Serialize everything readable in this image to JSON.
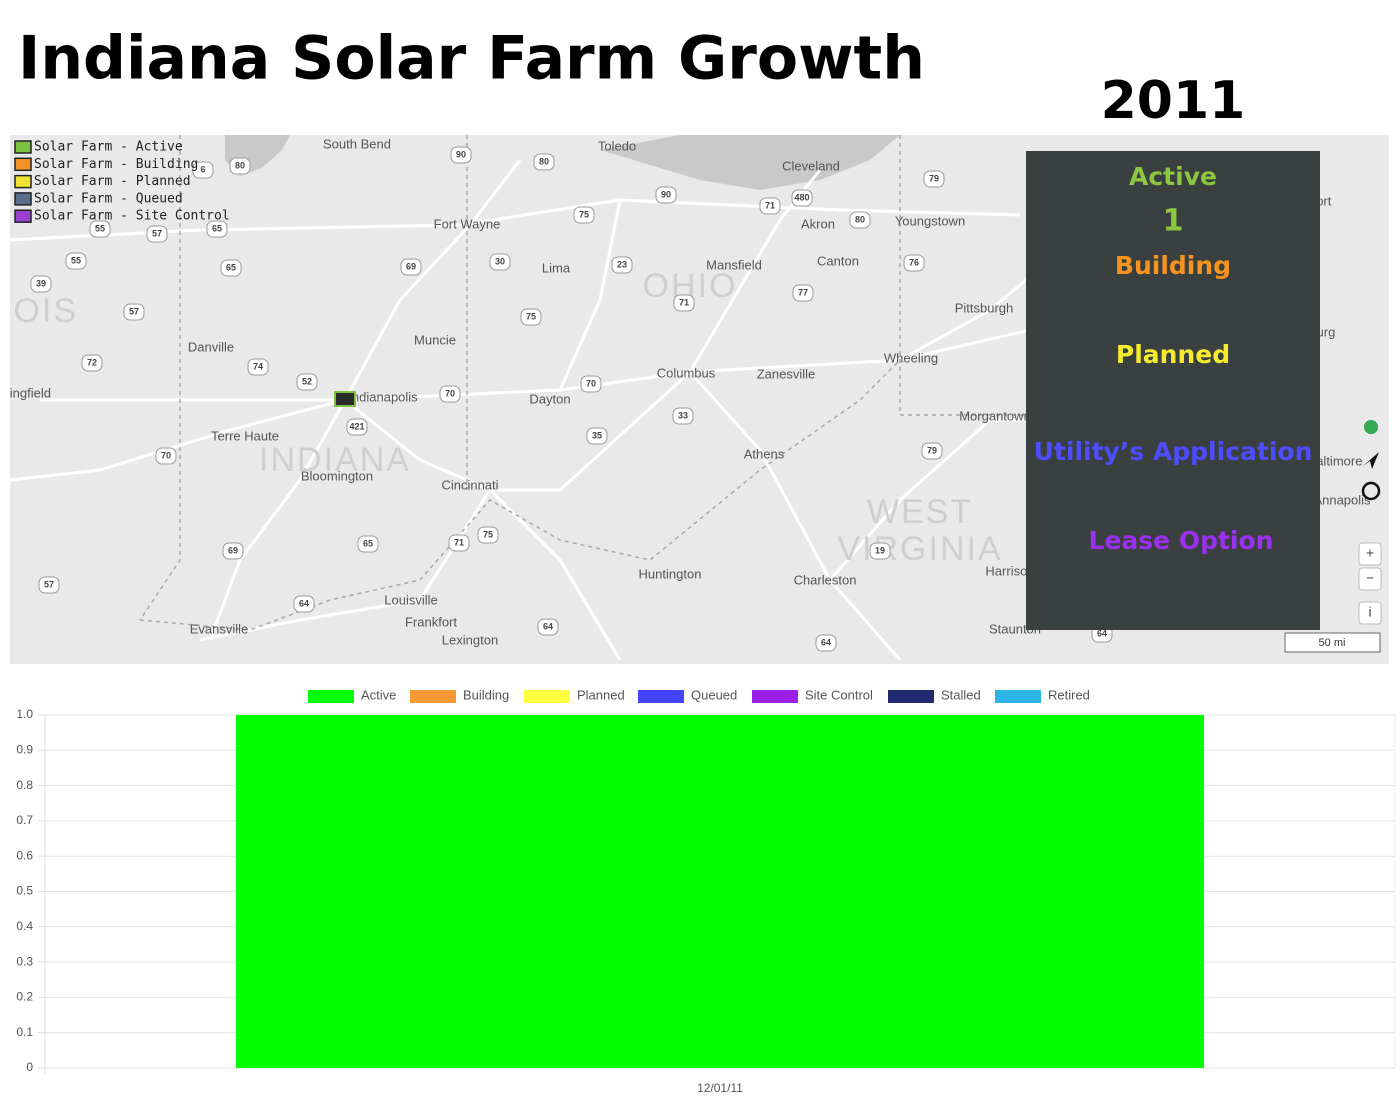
{
  "header": {
    "title": "Indiana Solar Farm Growth",
    "year": "2011"
  },
  "map": {
    "legend": [
      {
        "label": "Solar Farm - Active",
        "color": "#7cc241"
      },
      {
        "label": "Solar Farm - Building",
        "color": "#f39325"
      },
      {
        "label": "Solar Farm - Planned",
        "color": "#f2e233"
      },
      {
        "label": "Solar Farm - Queued",
        "color": "#5a6e8c"
      },
      {
        "label": "Solar Farm - Site Control",
        "color": "#9b3fd1"
      }
    ],
    "cities": [
      "South Bend",
      "Toledo",
      "Cleveland",
      "Fort Wayne",
      "Akron",
      "Youngstown",
      "Williamsport",
      "Lima",
      "Mansfield",
      "Canton",
      "Pittsburgh",
      "Harrisburg",
      "Muncie",
      "Danville",
      "Columbus",
      "Zanesville",
      "Wheeling",
      "Dayton",
      "Indianapolis",
      "Morgantown",
      "Terre Haute",
      "Athens",
      "Baltimore",
      "Bloomington",
      "Cincinnati",
      "Annapolis",
      "Huntington",
      "Charleston",
      "Harrisonburg",
      "Louisville",
      "Frankfort",
      "Evansville",
      "Lexington",
      "Staunton",
      "Springfield"
    ],
    "states": [
      "OHIO",
      "INDIANA",
      "WEST",
      "VIRGINIA",
      "ILLINOIS"
    ],
    "highways": [
      "90",
      "80",
      "80",
      "6",
      "90",
      "75",
      "71",
      "480",
      "80",
      "79",
      "65",
      "55",
      "57",
      "55",
      "65",
      "69",
      "30",
      "23",
      "71",
      "77",
      "76",
      "39",
      "57",
      "75",
      "72",
      "74",
      "52",
      "70",
      "70",
      "421",
      "33",
      "35",
      "70",
      "79",
      "69",
      "65",
      "71",
      "75",
      "19",
      "57",
      "64",
      "64",
      "64",
      "64"
    ],
    "controls": [
      "+",
      "−",
      "i"
    ],
    "scale": "50 mi"
  },
  "panel": {
    "items": [
      {
        "label": "Active",
        "count": 1,
        "color": "#8dc63f"
      },
      {
        "label": "Building",
        "color": "#f7941d"
      },
      {
        "label": "Planned",
        "color": "#f5ec2f"
      },
      {
        "label": "Utility’s Application",
        "color": "#4d4dff"
      },
      {
        "label": "Lease Option",
        "color": "#9b30f0"
      }
    ]
  },
  "chart_data": {
    "type": "bar",
    "stacked": true,
    "categories": [
      "12/01/11"
    ],
    "series": [
      {
        "name": "Active",
        "color": "#00ff00",
        "values": [
          1
        ]
      },
      {
        "name": "Building",
        "color": "#f79a35",
        "values": [
          0
        ]
      },
      {
        "name": "Planned",
        "color": "#ffff40",
        "values": [
          0
        ]
      },
      {
        "name": "Queued",
        "color": "#4444ff",
        "values": [
          0
        ]
      },
      {
        "name": "Site Control",
        "color": "#9c1fe8",
        "values": [
          0
        ]
      },
      {
        "name": "Stalled",
        "color": "#1f2a70",
        "values": [
          0
        ]
      },
      {
        "name": "Retired",
        "color": "#2eb5e8",
        "values": [
          0
        ]
      }
    ],
    "ylim": [
      0,
      1
    ],
    "yticks": [
      0,
      0.1,
      0.2,
      0.3,
      0.4,
      0.5,
      0.6,
      0.7,
      0.8,
      0.9,
      {
        "value": 1,
        "label": "1.0"
      }
    ],
    "grid": true
  }
}
